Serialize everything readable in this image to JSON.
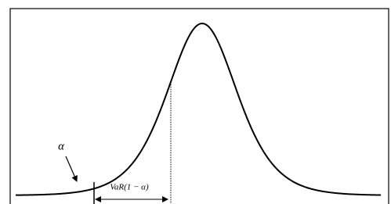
{
  "labels": {
    "alpha": "α",
    "var": "VaR(1 − α)"
  }
}
